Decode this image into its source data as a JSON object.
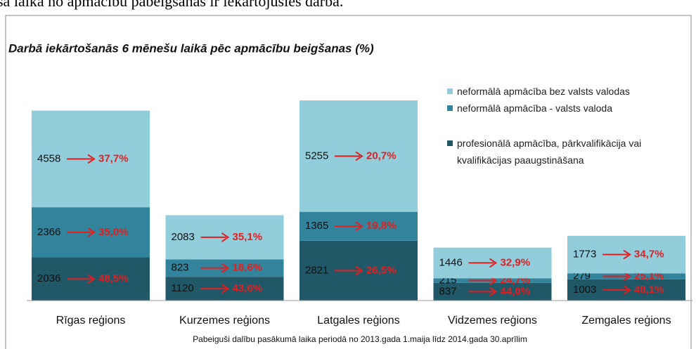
{
  "top_text": "sa laika no apmācību pabeigšanas ir iekārtojušies darbā.",
  "chart_data": {
    "type": "stacked_bar",
    "title": "Darbā iekārtošanās 6 mēnešu laikā pēc apmācību beigšanas (%)",
    "categories": [
      "Rīgas reģions",
      "Kurzemes reģions",
      "Latgales reģions",
      "Vidzemes reģions",
      "Zemgales reģions"
    ],
    "series": [
      {
        "name": "profesionālā apmācība, pārkvalifikācija vai kvalifikācijas paaugstināšana",
        "color": "#215868",
        "values": [
          2036,
          1120,
          2821,
          837,
          1003
        ],
        "shares": [
          48.5,
          43.6,
          26.5,
          44.0,
          48.1
        ],
        "share_labels": [
          "48,5%",
          "43,6%",
          "26,5%",
          "44,0%",
          "48,1%"
        ]
      },
      {
        "name": "neformālā apmācība - valsts valoda",
        "color": "#31849b",
        "values": [
          2366,
          823,
          1365,
          215,
          279
        ],
        "shares": [
          35.0,
          18.6,
          19.8,
          24.7,
          25.1
        ],
        "share_labels": [
          "35,0%",
          "18,6%",
          "19,8%",
          "24,7%",
          "25,1%"
        ]
      },
      {
        "name": "neformālā apmācība bez valsts valodas",
        "color": "#92cddc",
        "values": [
          4558,
          2083,
          5255,
          1446,
          1773
        ],
        "shares": [
          37.7,
          35.1,
          20.7,
          32.9,
          34.7
        ],
        "share_labels": [
          "37,7%",
          "35,1%",
          "20,7%",
          "32,9%",
          "34,7%"
        ]
      }
    ],
    "footnote": "Pabeiguši dalību pasākumā laika periodā no 2013.gada 1.maija līdz 2014.gada 30.aprīlim"
  }
}
